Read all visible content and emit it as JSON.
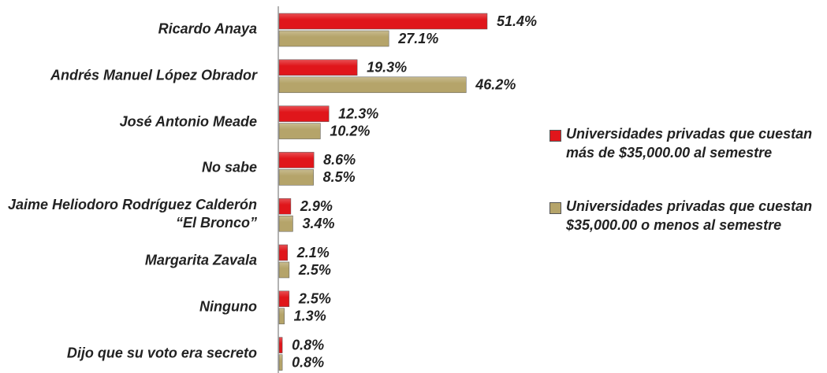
{
  "chart_data": {
    "type": "bar",
    "orientation": "horizontal",
    "categories": [
      "Ricardo Anaya",
      "Andrés Manuel López Obrador",
      "José Antonio Meade",
      "No sabe",
      "Jaime Heliodoro Rodríguez Calderón “El Bronco”",
      "Margarita Zavala",
      "Ninguno",
      "Dijo que su voto era secreto"
    ],
    "series": [
      {
        "name": "Universidades privadas que cuestan más de $35,000.00 al semestre",
        "color": "#e0161b",
        "values": [
          51.4,
          19.3,
          12.3,
          8.6,
          2.9,
          2.1,
          2.5,
          0.8
        ],
        "value_labels": [
          "51.4%",
          "19.3%",
          "12.3%",
          "8.6%",
          "2.9%",
          "2.1%",
          "2.5%",
          "0.8%"
        ]
      },
      {
        "name": "Universidades privadas que cuestan $35,000.00 o menos al semestre",
        "color": "#b5a46a",
        "values": [
          27.1,
          46.2,
          10.2,
          8.5,
          3.4,
          2.5,
          1.3,
          0.8
        ],
        "value_labels": [
          "27.1%",
          "46.2%",
          "10.2%",
          "8.5%",
          "3.4%",
          "2.5%",
          "1.3%",
          "0.8%"
        ]
      }
    ],
    "legend": "right"
  }
}
